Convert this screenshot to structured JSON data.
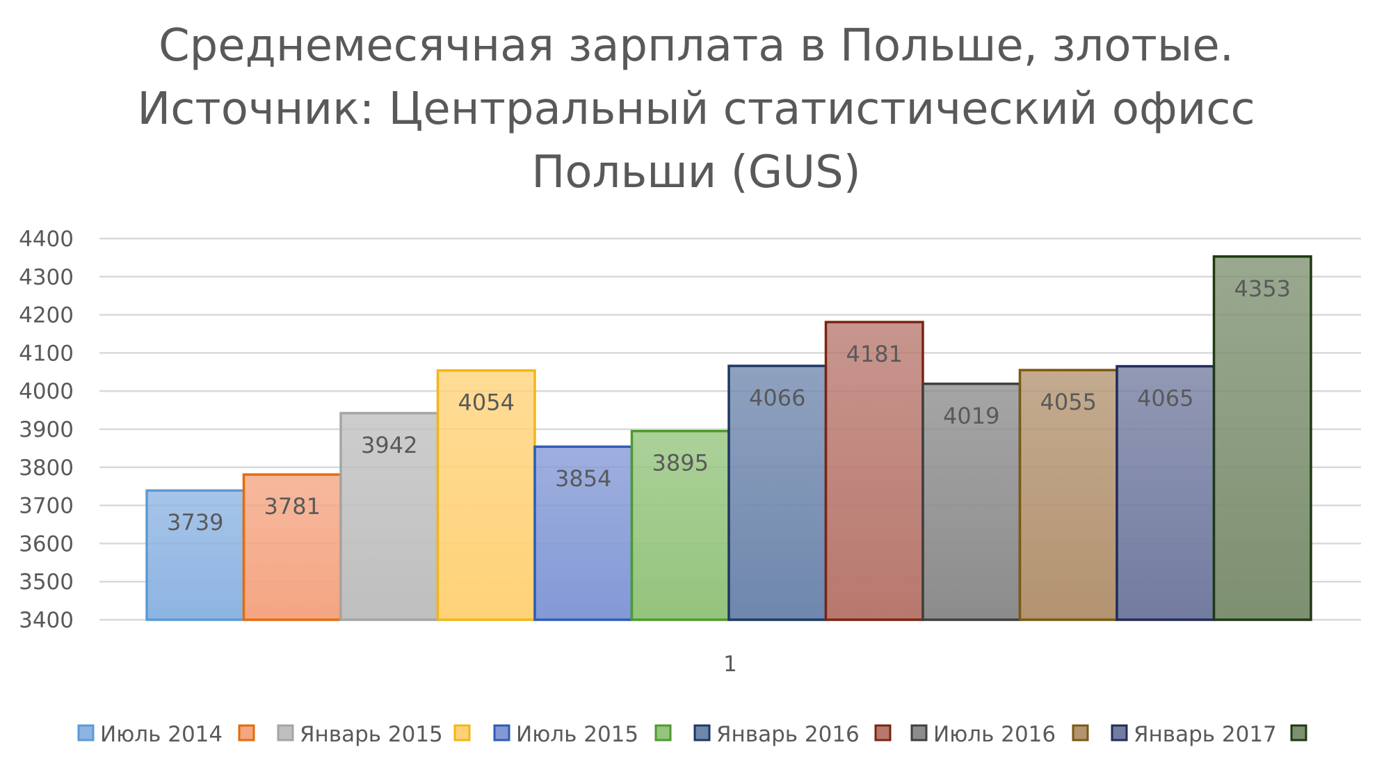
{
  "chart_data": {
    "type": "bar",
    "title_lines": [
      "Среднемесячная зарплата в Польше, злотые.",
      "Источник: Центральный статистический офисс",
      "Польши (GUS)"
    ],
    "categories": [
      "1"
    ],
    "ylim": [
      3400,
      4400
    ],
    "y_ticks": [
      3400,
      3500,
      3600,
      3700,
      3800,
      3900,
      4000,
      4100,
      4200,
      4300,
      4400
    ],
    "grid": true,
    "legend_position": "bottom",
    "series": [
      {
        "name": "Июль 2014",
        "values": [
          3739
        ],
        "fill": "#8db4e2",
        "stroke": "#5b9bd5"
      },
      {
        "name": "",
        "values": [
          3781
        ],
        "fill": "#f4a582",
        "stroke": "#e46c0a"
      },
      {
        "name": "Январь 2015",
        "values": [
          3942
        ],
        "fill": "#bfbfbf",
        "stroke": "#a5a5a5"
      },
      {
        "name": "",
        "values": [
          4054
        ],
        "fill": "#ffd278",
        "stroke": "#f2b617"
      },
      {
        "name": "Июль 2015",
        "values": [
          3854
        ],
        "fill": "#8399d6",
        "stroke": "#2e5cb8"
      },
      {
        "name": "",
        "values": [
          3895
        ],
        "fill": "#94c47d",
        "stroke": "#4e9a2e"
      },
      {
        "name": "Январь 2016",
        "values": [
          4066
        ],
        "fill": "#6f87ad",
        "stroke": "#1f3864"
      },
      {
        "name": "",
        "values": [
          4181
        ],
        "fill": "#b8786e",
        "stroke": "#7b2410"
      },
      {
        "name": "Июль 2016",
        "values": [
          4019
        ],
        "fill": "#8c8c8c",
        "stroke": "#3f3f3f"
      },
      {
        "name": "",
        "values": [
          4055
        ],
        "fill": "#b39370",
        "stroke": "#7a5a10"
      },
      {
        "name": "Январь 2017",
        "values": [
          4065
        ],
        "fill": "#737ca0",
        "stroke": "#1f2d5c"
      },
      {
        "name": "",
        "values": [
          4353
        ],
        "fill": "#7d9070",
        "stroke": "#1e3a12"
      }
    ]
  }
}
